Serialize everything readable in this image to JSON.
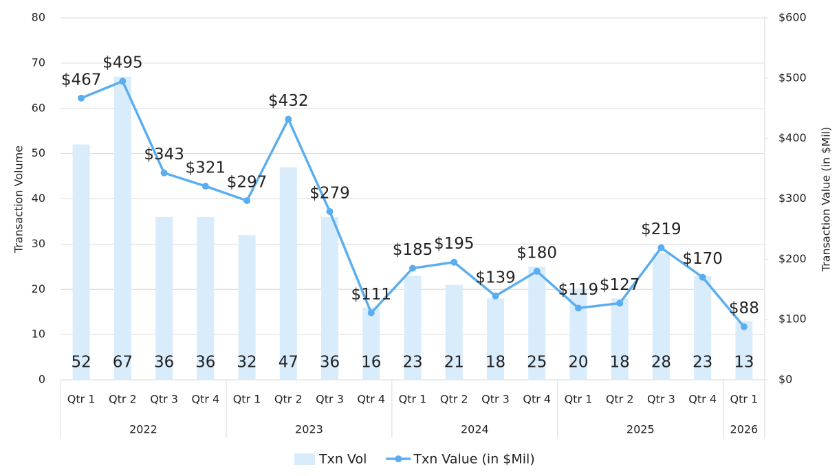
{
  "chart_data": {
    "type": "combo",
    "y_label": "Transaction Volume",
    "y2_label": "Transaction Value (in $Mil)",
    "groups": [
      {
        "label": "2022",
        "categories": [
          "Qtr 1",
          "Qtr 2",
          "Qtr 3",
          "Qtr 4"
        ]
      },
      {
        "label": "2023",
        "categories": [
          "Qtr 1",
          "Qtr 2",
          "Qtr 3",
          "Qtr 4"
        ]
      },
      {
        "label": "2024",
        "categories": [
          "Qtr 1",
          "Qtr 2",
          "Qtr 3",
          "Qtr 4"
        ]
      },
      {
        "label": "2025",
        "categories": [
          "Qtr 1",
          "Qtr 2",
          "Qtr 3",
          "Qtr 4"
        ]
      },
      {
        "label": "2026",
        "categories": [
          "Qtr 1"
        ]
      }
    ],
    "series": [
      {
        "name": "Txn Vol",
        "type": "bar",
        "color": "#d9ecfc",
        "values": [
          52,
          67,
          36,
          36,
          32,
          47,
          36,
          16,
          23,
          21,
          18,
          25,
          20,
          18,
          28,
          23,
          13
        ]
      },
      {
        "name": "Txn Value (in $Mil)",
        "type": "line",
        "axis": "y2",
        "color": "#5aaef0",
        "values": [
          467,
          495,
          343,
          321,
          297,
          432,
          279,
          111,
          185,
          195,
          139,
          180,
          119,
          127,
          219,
          170,
          88
        ],
        "value_labels": [
          "$467",
          "$495",
          "$343",
          "$321",
          "$297",
          "$432",
          "$279",
          "$111",
          "$185",
          "$195",
          "$139",
          "$180",
          "$119",
          "$127",
          "$219",
          "$170",
          "$88"
        ]
      }
    ],
    "ylim": [
      0,
      80
    ],
    "yticks": [
      0,
      10,
      20,
      30,
      40,
      50,
      60,
      70,
      80
    ],
    "y2lim": [
      0,
      600
    ],
    "y2ticks": [
      {
        "value": 0,
        "label": "$0"
      },
      {
        "value": 100,
        "label": "$100"
      },
      {
        "value": 200,
        "label": "$200"
      },
      {
        "value": 300,
        "label": "$300"
      },
      {
        "value": 400,
        "label": "$400"
      },
      {
        "value": 500,
        "label": "$500"
      },
      {
        "value": 600,
        "label": "$600"
      }
    ],
    "grid": true
  }
}
